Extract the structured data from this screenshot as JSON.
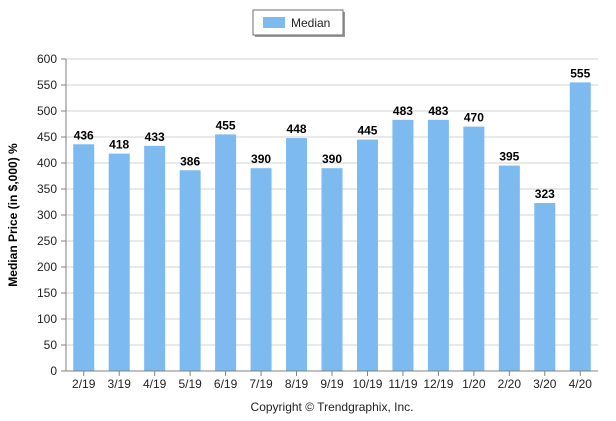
{
  "chart_data": {
    "type": "bar",
    "categories": [
      "2/19",
      "3/19",
      "4/19",
      "5/19",
      "6/19",
      "7/19",
      "8/19",
      "9/19",
      "10/19",
      "11/19",
      "12/19",
      "1/20",
      "2/20",
      "3/20",
      "4/20"
    ],
    "series": [
      {
        "name": "Median",
        "values": [
          436,
          418,
          433,
          386,
          455,
          390,
          448,
          390,
          445,
          483,
          483,
          470,
          395,
          323,
          555
        ],
        "color": "#7dbaf0"
      }
    ],
    "ylabel": "Median Price (in $,000) %",
    "ylim": [
      0,
      600
    ],
    "yticks": [
      0,
      50,
      100,
      150,
      200,
      250,
      300,
      350,
      400,
      450,
      500,
      550,
      600
    ],
    "grid": true,
    "legend_position": "top-center",
    "data_labels": true
  },
  "footer": {
    "copyright": "Copyright © Trendgraphix, Inc."
  }
}
